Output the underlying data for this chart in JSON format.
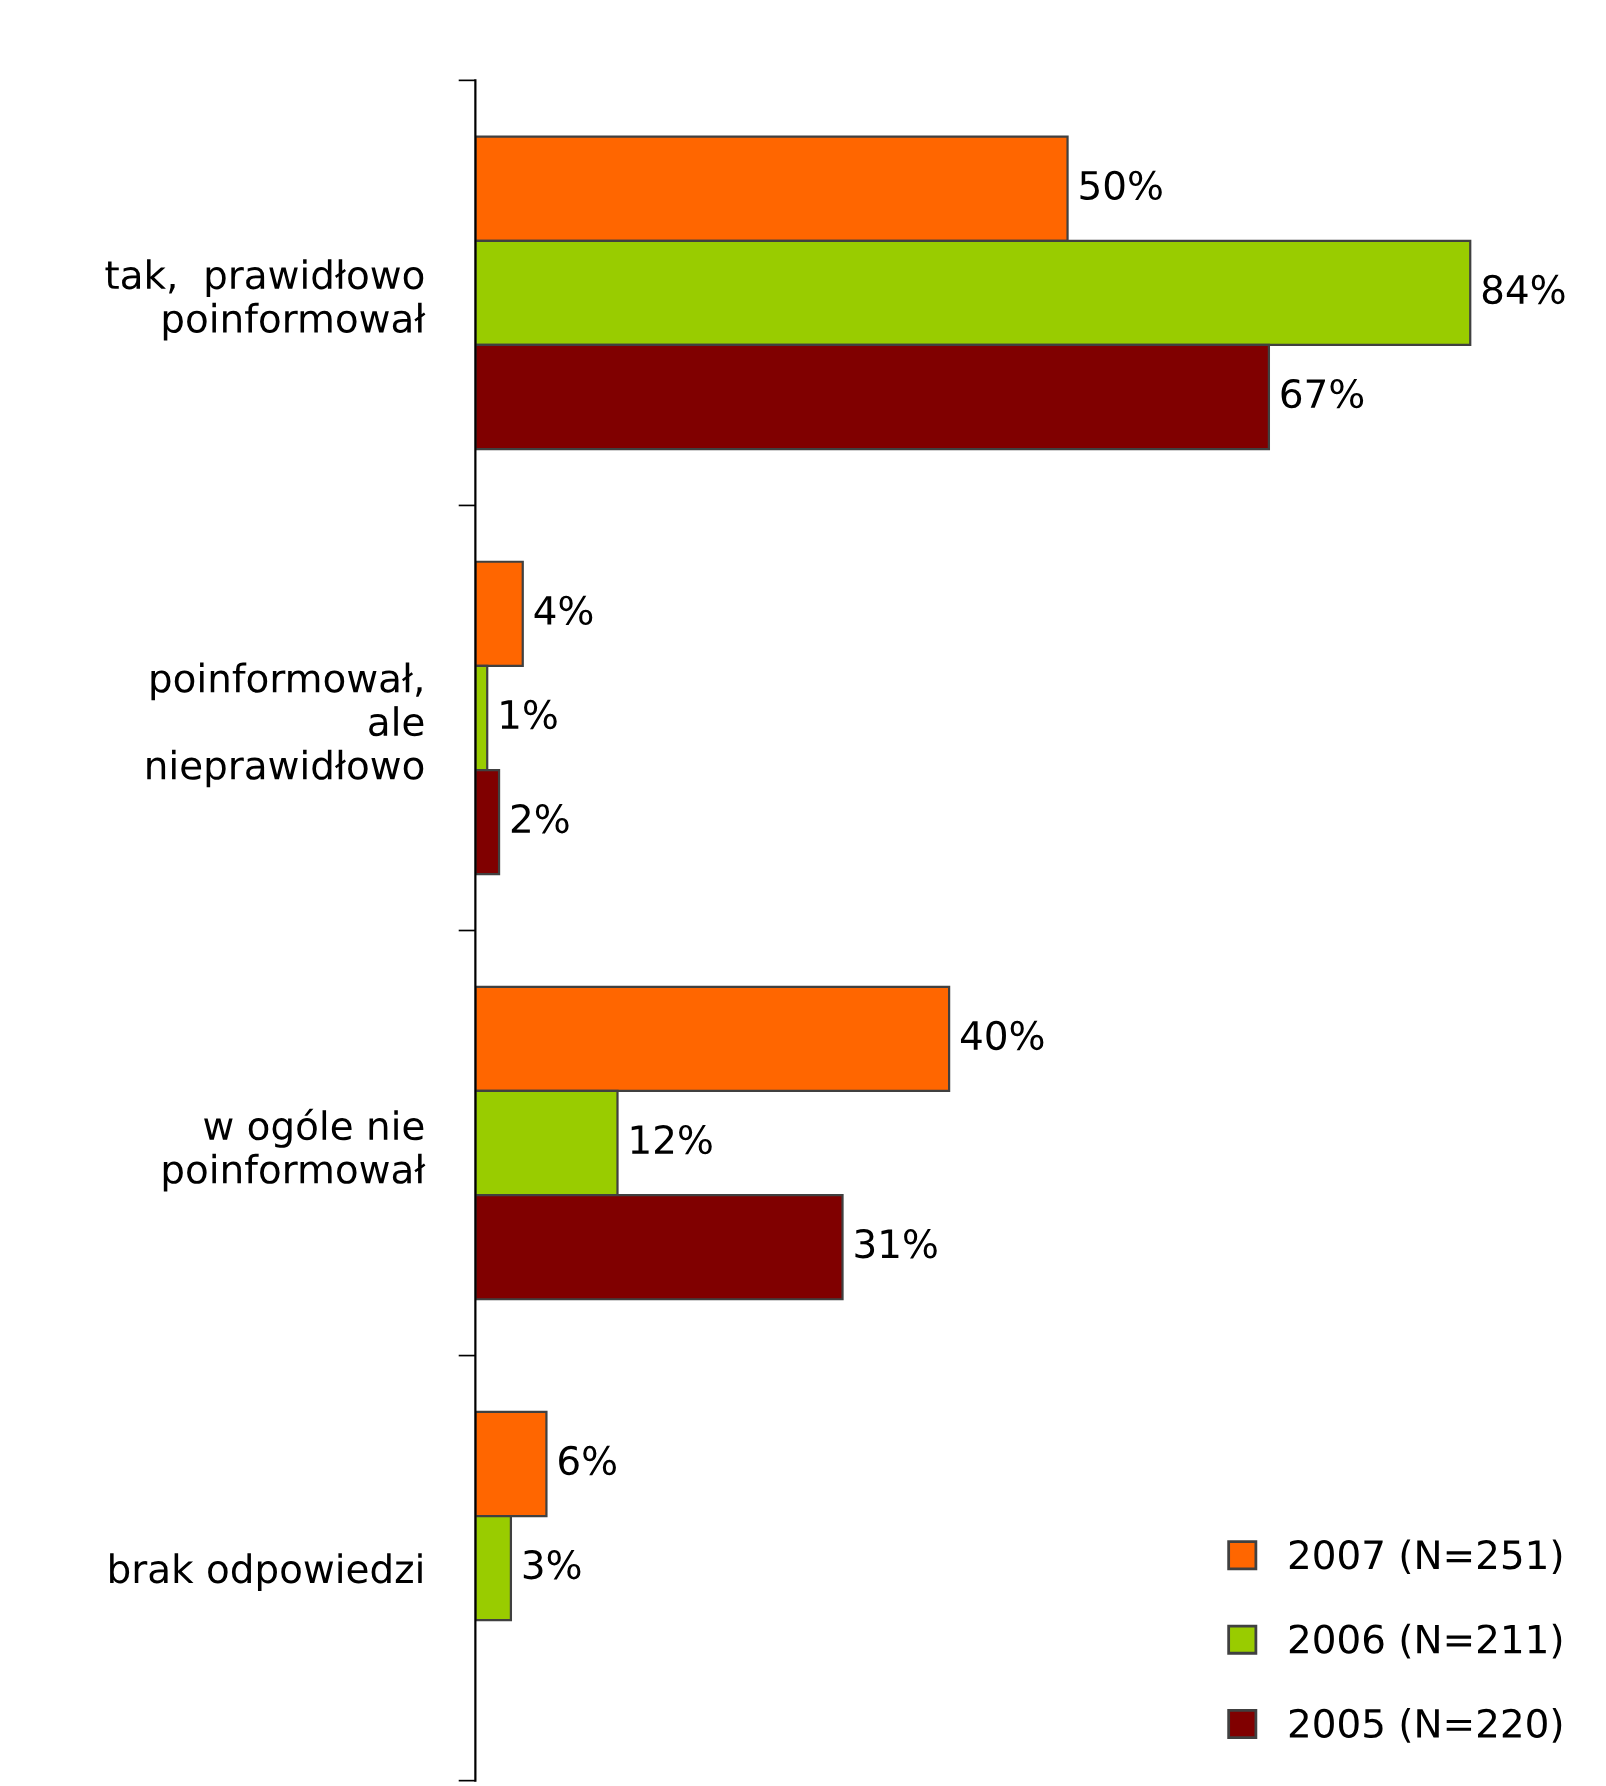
{
  "chart_data": {
    "type": "bar",
    "orientation": "horizontal",
    "categories": [
      "tak,  prawidłowo\npoinformował",
      "poinformował,\nale\nnieprawidłowo",
      "w ogóle nie\npoinformował",
      "brak odpowiedzi"
    ],
    "series": [
      {
        "name": "2007 (N=251)",
        "color": "#ff6600",
        "values": [
          50,
          4,
          40,
          6
        ],
        "value_labels": [
          "50%",
          "4%",
          "40%",
          "6%"
        ]
      },
      {
        "name": "2006 (N=211)",
        "color": "#99cc00",
        "values": [
          84,
          1,
          12,
          3
        ],
        "value_labels": [
          "84%",
          "1%",
          "12%",
          "3%"
        ]
      },
      {
        "name": "2005 (N=220)",
        "color": "#800000",
        "values": [
          67,
          2,
          31,
          null
        ],
        "value_labels": [
          "67%",
          "2%",
          "31%",
          null
        ]
      }
    ],
    "legend": "bottom right"
  }
}
